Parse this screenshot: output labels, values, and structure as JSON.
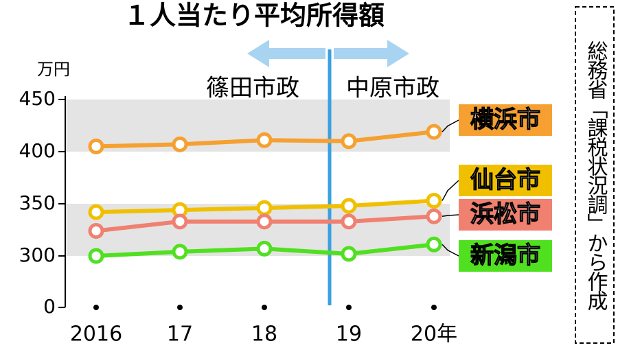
{
  "chart_data": {
    "type": "line",
    "title": "１人当たり平均所得額",
    "y_unit": "万円",
    "source": "総務省「課税状況調」から作成",
    "annotations": [
      "篠田市政",
      "中原市政"
    ],
    "categories": [
      "2016",
      "17",
      "18",
      "19",
      "20年"
    ],
    "series": [
      {
        "name": "横浜市",
        "color": "#f5a030",
        "values": [
          405,
          407,
          411,
          410,
          419
        ]
      },
      {
        "name": "仙台市",
        "color": "#f0c000",
        "values": [
          342,
          344,
          346,
          348,
          353
        ]
      },
      {
        "name": "浜松市",
        "color": "#f08070",
        "values": [
          324,
          333,
          333,
          333,
          338
        ]
      },
      {
        "name": "新潟市",
        "color": "#50e020",
        "values": [
          300,
          304,
          307,
          302,
          311
        ]
      }
    ],
    "ylim": [
      0,
      450
    ],
    "y_break": [
      0,
      300
    ],
    "yticks": [
      0,
      300,
      350,
      400,
      450
    ],
    "bands": [
      [
        300,
        350
      ],
      [
        400,
        450
      ]
    ]
  }
}
